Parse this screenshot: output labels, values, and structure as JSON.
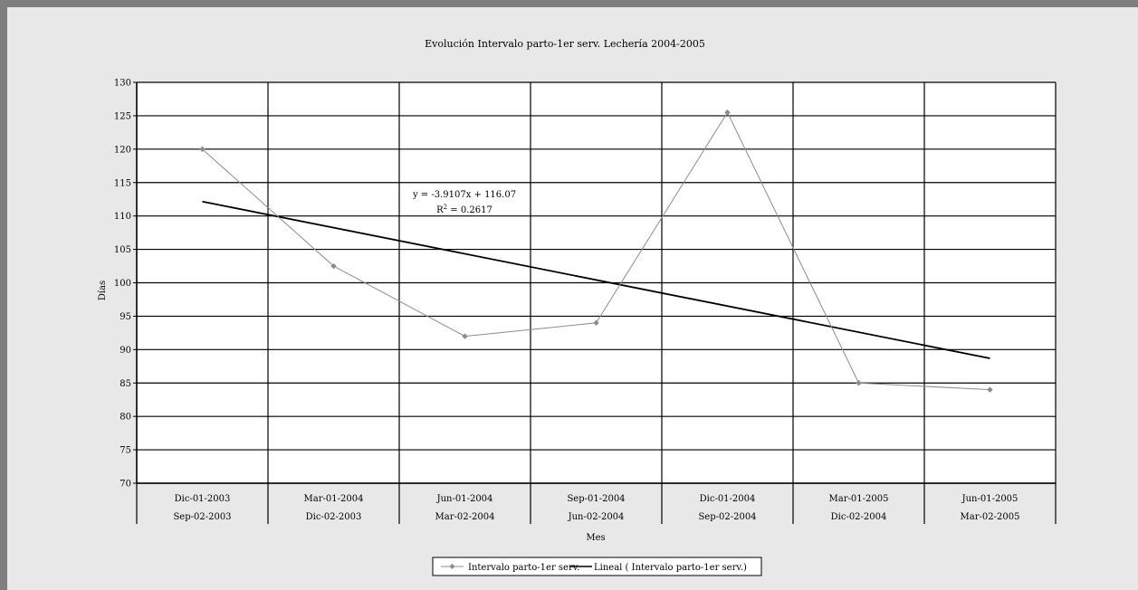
{
  "chart_data": {
    "type": "line",
    "title": "Evolución  Intervalo parto-1er serv. Lechería  2004-2005",
    "xlabel": "Mes",
    "ylabel": "Días",
    "ylim": [
      70,
      130
    ],
    "ytick_step": 5,
    "grid": true,
    "categories": [
      [
        "Dic-01-2003",
        "Sep-02-2003"
      ],
      [
        "Mar-01-2004",
        "Dic-02-2003"
      ],
      [
        "Jun-01-2004",
        "Mar-02-2004"
      ],
      [
        "Sep-01-2004",
        "Jun-02-2004"
      ],
      [
        "Dic-01-2004",
        "Sep-02-2004"
      ],
      [
        "Mar-01-2005",
        "Dic-02-2004"
      ],
      [
        "Jun-01-2005",
        "Mar-02-2005"
      ]
    ],
    "series": [
      {
        "name": "Intervalo parto-1er serv.",
        "values": [
          120,
          102.5,
          92,
          94,
          125.5,
          85,
          84
        ],
        "color": "#8c8c8c",
        "marker": "diamond"
      }
    ],
    "trendline": {
      "name": "Lineal ( Intervalo parto-1er serv.)",
      "slope": -3.9107,
      "intercept": 116.07,
      "color": "#000000",
      "equation": "y = -3.9107x + 116.07",
      "r2_prefix": "R",
      "r2_exp": "2",
      "r2_value": " = 0.2617"
    },
    "legend_position": "bottom"
  }
}
